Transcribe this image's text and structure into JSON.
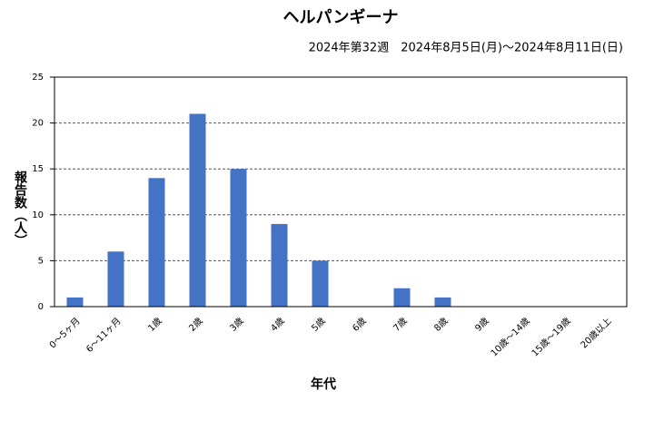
{
  "chart_data": {
    "type": "bar",
    "title": "ヘルパンギーナ",
    "subtitle": "2024年第32週　2024年8月5日(月)～2024年8月11日(日)",
    "x_label": "年代",
    "y_label": "報告数（人）",
    "categories": [
      "0～5ヶ月",
      "6～11ヶ月",
      "1歳",
      "2歳",
      "3歳",
      "4歳",
      "5歳",
      "6歳",
      "7歳",
      "8歳",
      "9歳",
      "10歳～14歳",
      "15歳～19歳",
      "20歳以上"
    ],
    "values": [
      1,
      6,
      14,
      21,
      15,
      9,
      5,
      0,
      2,
      1,
      0,
      0,
      0,
      0
    ],
    "color": "#4472c4",
    "ylim": [
      0,
      25
    ],
    "yticks": [
      0,
      5,
      10,
      15,
      20,
      25
    ],
    "grid": true
  }
}
